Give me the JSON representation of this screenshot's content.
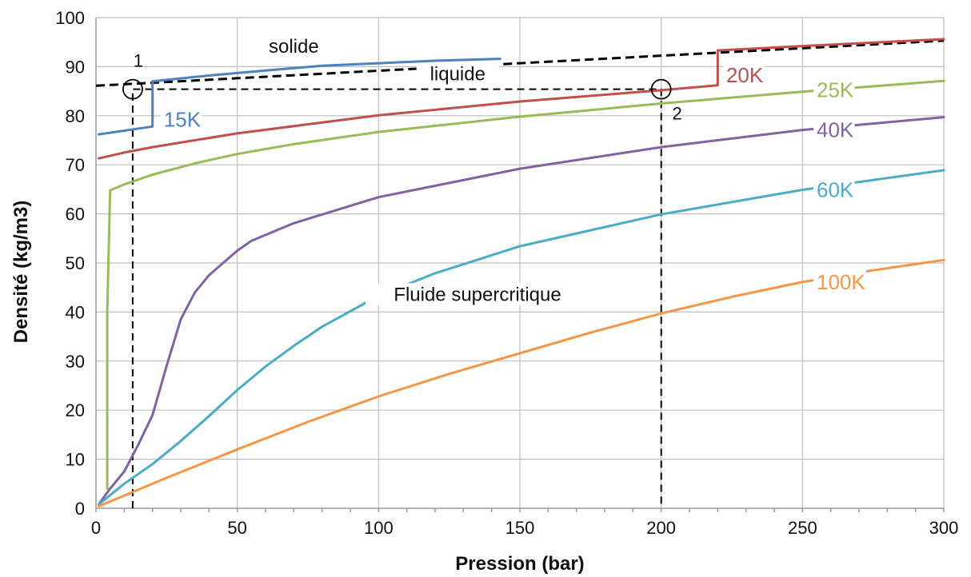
{
  "chart_data": {
    "type": "line",
    "title": "",
    "xlabel": "Pression (bar)",
    "ylabel": "Densité (kg/m3)",
    "xlim": [
      0,
      300
    ],
    "ylim": [
      0,
      100
    ],
    "xticks": [
      0,
      50,
      100,
      150,
      200,
      250,
      300
    ],
    "yticks": [
      0,
      10,
      20,
      30,
      40,
      50,
      60,
      70,
      80,
      90,
      100
    ],
    "grid": true,
    "series": [
      {
        "name": "15K",
        "color": "#4f81bd",
        "x": [
          1,
          20,
          20,
          40,
          60,
          80,
          100,
          120,
          143
        ],
        "y": [
          76.2,
          77.8,
          87,
          88.2,
          89.2,
          90.2,
          90.7,
          91.2,
          91.6
        ]
      },
      {
        "name": "20K",
        "color": "#c0504d",
        "x": [
          1,
          10,
          20,
          50,
          100,
          150,
          200,
          220,
          220,
          250,
          300
        ],
        "y": [
          71.3,
          72.5,
          73.6,
          76.4,
          80.1,
          82.9,
          85.2,
          86.2,
          93.3,
          94.2,
          95.6
        ]
      },
      {
        "name": "25K",
        "color": "#9bbb59",
        "x": [
          4,
          4,
          5,
          10,
          20,
          35,
          50,
          70,
          100,
          150,
          200,
          250,
          300
        ],
        "y": [
          4,
          40,
          64.8,
          66,
          68,
          70.3,
          72.2,
          74.2,
          76.7,
          79.8,
          82.5,
          84.9,
          87.1
        ]
      },
      {
        "name": "40K",
        "color": "#8064a2",
        "x": [
          1,
          5,
          10,
          15,
          20,
          25,
          30,
          35,
          40,
          50,
          55,
          70,
          100,
          150,
          200,
          250,
          300
        ],
        "y": [
          0.8,
          4,
          7.5,
          13,
          19,
          29,
          38.5,
          44,
          47.5,
          52.5,
          54.5,
          58.1,
          63.4,
          69.2,
          73.6,
          77.1,
          79.7
        ]
      },
      {
        "name": "60K",
        "color": "#4bacc6",
        "x": [
          1,
          10,
          20,
          30,
          40,
          50,
          60,
          70,
          80,
          100,
          120,
          150,
          200,
          250,
          300
        ],
        "y": [
          0.8,
          5,
          9,
          13.7,
          18.8,
          24.1,
          28.9,
          33.1,
          37,
          43.3,
          47.9,
          53.4,
          59.9,
          64.9,
          68.9
        ]
      },
      {
        "name": "100K",
        "color": "#f79646",
        "x": [
          1,
          25,
          50,
          75,
          100,
          125,
          150,
          175,
          200,
          225,
          250,
          275,
          300
        ],
        "y": [
          0.4,
          6.2,
          12,
          17.6,
          22.8,
          27.4,
          31.6,
          35.8,
          39.7,
          43.1,
          46.1,
          48.5,
          50.6
        ]
      }
    ],
    "boundaries": {
      "solid_liquid": {
        "x": [
          0,
          300
        ],
        "y": [
          86.1,
          95.3
        ]
      },
      "path_1_2": {
        "x": [
          13,
          13,
          200,
          200
        ],
        "y": [
          0,
          85.4,
          85.4,
          0
        ]
      }
    },
    "points": [
      {
        "label": "1",
        "x": 13,
        "y": 85.4
      },
      {
        "label": "2",
        "x": 200,
        "y": 85.4
      }
    ],
    "annotations": [
      {
        "text": "solide",
        "x": 70,
        "y": 92.8
      },
      {
        "text": "liquide",
        "x": 128,
        "y": 87.2
      },
      {
        "text": "Fluide supercritique",
        "x": 135,
        "y": 42.3
      }
    ]
  }
}
